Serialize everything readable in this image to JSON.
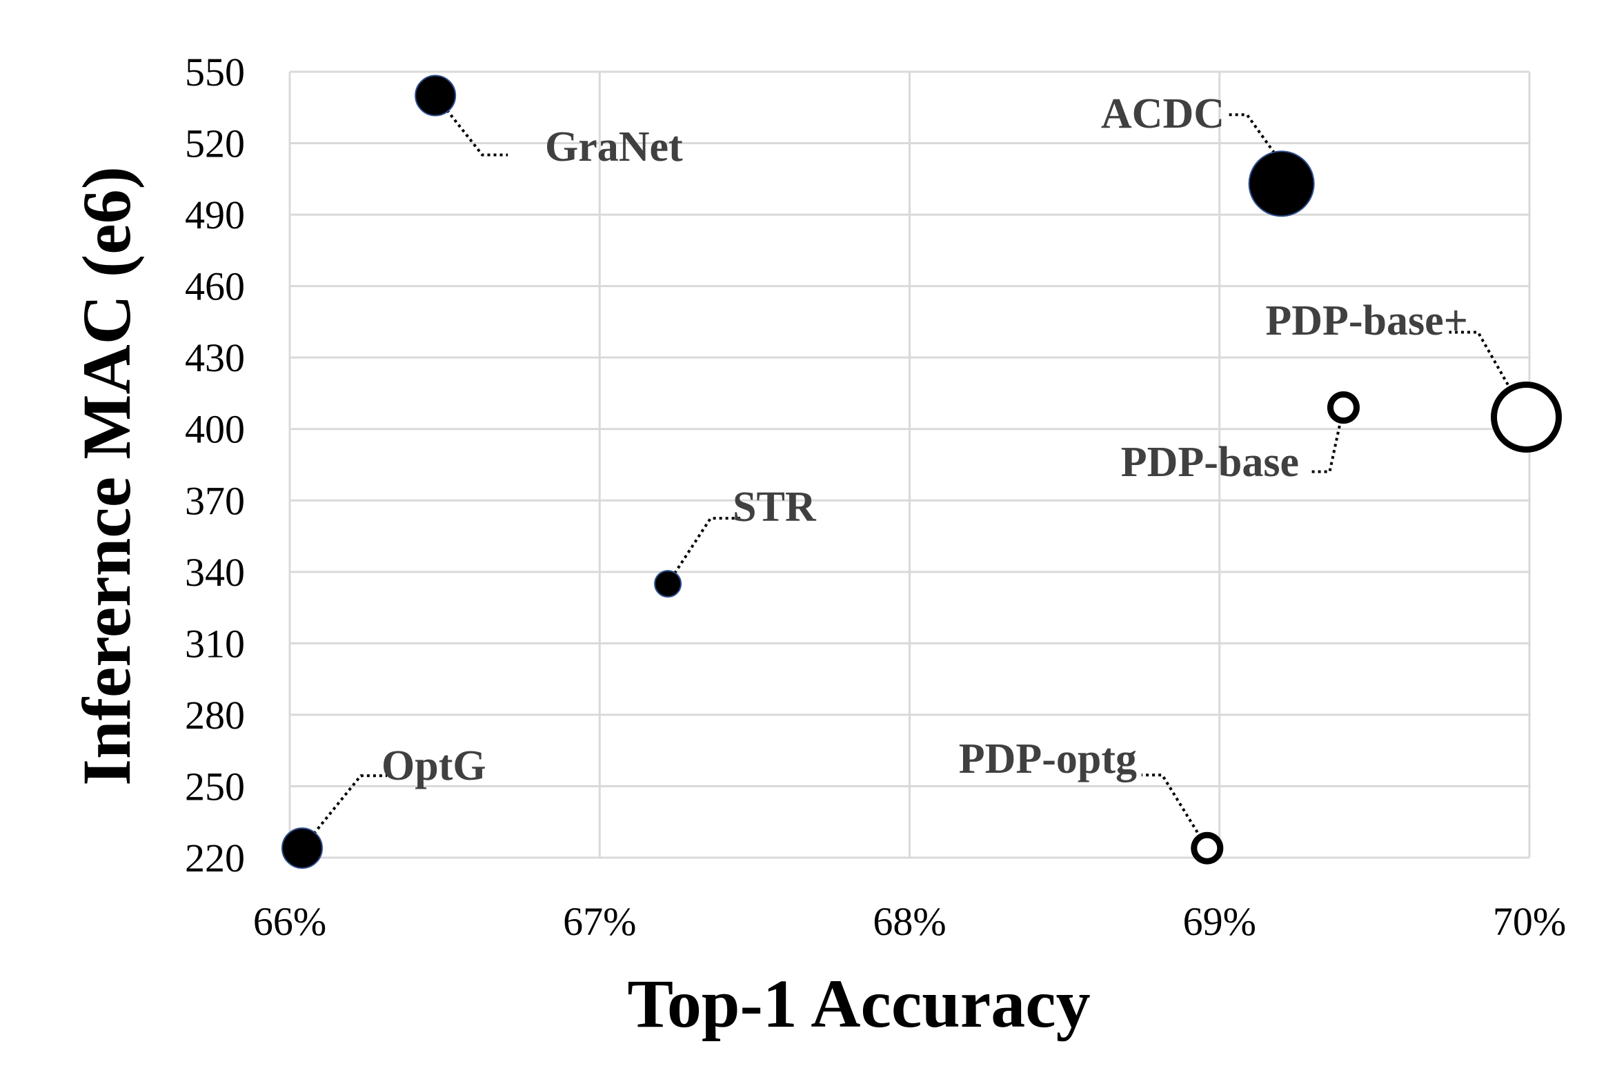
{
  "chart_data": {
    "type": "scatter",
    "xlabel": "Top-1 Accuracy",
    "ylabel": "Inferernce MAC (e6)",
    "xlim": [
      66,
      70
    ],
    "ylim": [
      220,
      550
    ],
    "x_ticks": [
      "66%",
      "67%",
      "68%",
      "69%",
      "70%"
    ],
    "y_ticks": [
      "220",
      "250",
      "280",
      "310",
      "340",
      "370",
      "400",
      "430",
      "460",
      "490",
      "520",
      "550"
    ],
    "grid": true,
    "points": [
      {
        "label": "GraNet",
        "x": 66.47,
        "y": 540,
        "size": "medium",
        "filled": true
      },
      {
        "label": "ACDC",
        "x": 69.2,
        "y": 503,
        "size": "large",
        "filled": true
      },
      {
        "label": "STR",
        "x": 67.22,
        "y": 335,
        "size": "small",
        "filled": true
      },
      {
        "label": "OptG",
        "x": 66.04,
        "y": 224,
        "size": "medium",
        "filled": true
      },
      {
        "label": "PDP-base",
        "x": 69.4,
        "y": 409,
        "size": "small",
        "filled": false
      },
      {
        "label": "PDP-base+",
        "x": 69.99,
        "y": 405,
        "size": "large",
        "filled": false
      },
      {
        "label": "PDP-optg",
        "x": 68.96,
        "y": 224,
        "size": "small",
        "filled": false
      }
    ]
  }
}
